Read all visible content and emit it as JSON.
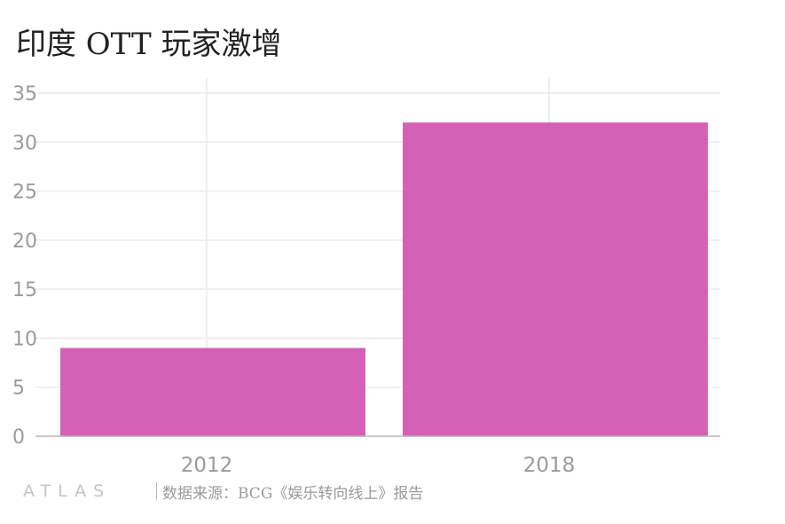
{
  "title": "印度 OTT 玩家激增",
  "source": "数据来源：BCG《娱乐转向线上》报告",
  "brand": "ATLAS",
  "colors": {
    "bar": "#d561b7",
    "grid": "#ebebeb",
    "axis": "#b5b5b5",
    "tick_text": "#9b9b9b",
    "title": "#222222"
  },
  "chart_data": {
    "type": "bar",
    "title": "印度 OTT 玩家激增",
    "categories": [
      "2012",
      "2018"
    ],
    "values": [
      9,
      32
    ],
    "ylim": [
      0,
      35
    ],
    "yticks": [
      0,
      5,
      10,
      15,
      20,
      25,
      30,
      35
    ],
    "xlabel": "",
    "ylabel": "",
    "grid": true,
    "legend": "none"
  }
}
